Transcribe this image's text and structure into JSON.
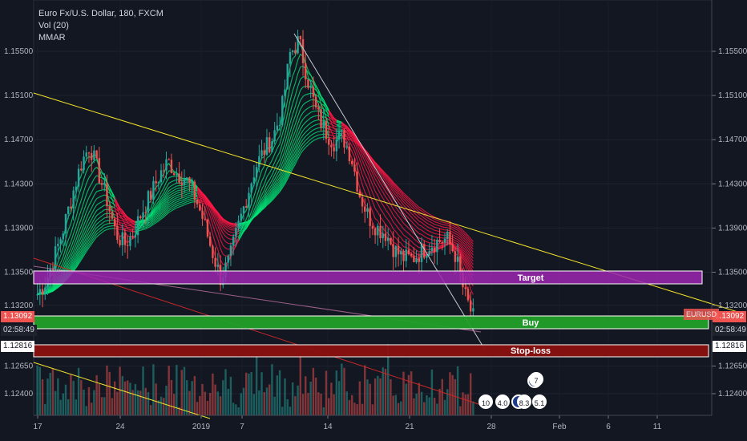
{
  "legend": {
    "title": "Euro Fx/U.S. Dollar, 180, FXCM",
    "indicator_1": "Vol (20)",
    "indicator_2": "MMAR"
  },
  "chart_data": {
    "type": "candlestick",
    "symbol": "EURUSD",
    "y_ticks": [
      "1.15500",
      "1.15100",
      "1.14700",
      "1.14300",
      "1.13900",
      "1.13500",
      "1.13200",
      "1.12650",
      "1.12400"
    ],
    "y_tick_values": [
      1.155,
      1.151,
      1.147,
      1.143,
      1.139,
      1.135,
      1.132,
      1.1265,
      1.124
    ],
    "ylim": [
      1.1215,
      1.1595
    ],
    "x_ticks": [
      "17",
      "24",
      "2019",
      "7",
      "14",
      "21",
      "28",
      "Feb",
      "6",
      "11"
    ],
    "close_series": [
      1.133,
      1.1342,
      1.1365,
      1.139,
      1.142,
      1.1448,
      1.1465,
      1.144,
      1.1415,
      1.1385,
      1.1375,
      1.1385,
      1.1405,
      1.142,
      1.1438,
      1.145,
      1.144,
      1.1435,
      1.142,
      1.1398,
      1.137,
      1.1345,
      1.136,
      1.139,
      1.1418,
      1.1445,
      1.146,
      1.1472,
      1.1495,
      1.1548,
      1.156,
      1.1525,
      1.1495,
      1.1478,
      1.1468,
      1.1473,
      1.1455,
      1.142,
      1.14,
      1.139,
      1.1385,
      1.137,
      1.1363,
      1.1362,
      1.1368,
      1.1375,
      1.1378,
      1.138,
      1.1365,
      1.133,
      1.1309
    ],
    "candles_from": "17",
    "candles_to": "27",
    "price_tags": [
      {
        "label": "1.13092",
        "color": "red"
      },
      {
        "label": "02:58:49",
        "color": "red"
      },
      {
        "label": "1.12816",
        "color": "white"
      }
    ],
    "symbol_tag": "EURUSD",
    "zones": [
      {
        "name": "Target",
        "color": "#9c27b0"
      },
      {
        "name": "Buy",
        "color": "#22a02a"
      },
      {
        "name": "Stop-loss",
        "color": "#8b1010"
      }
    ],
    "events": [
      "10",
      "4.0",
      "8.3",
      "5.1",
      "7"
    ],
    "trendlines": [
      "yellow-upper",
      "yellow-lower",
      "grey-drop",
      "red-channel",
      "pink-channel"
    ]
  }
}
